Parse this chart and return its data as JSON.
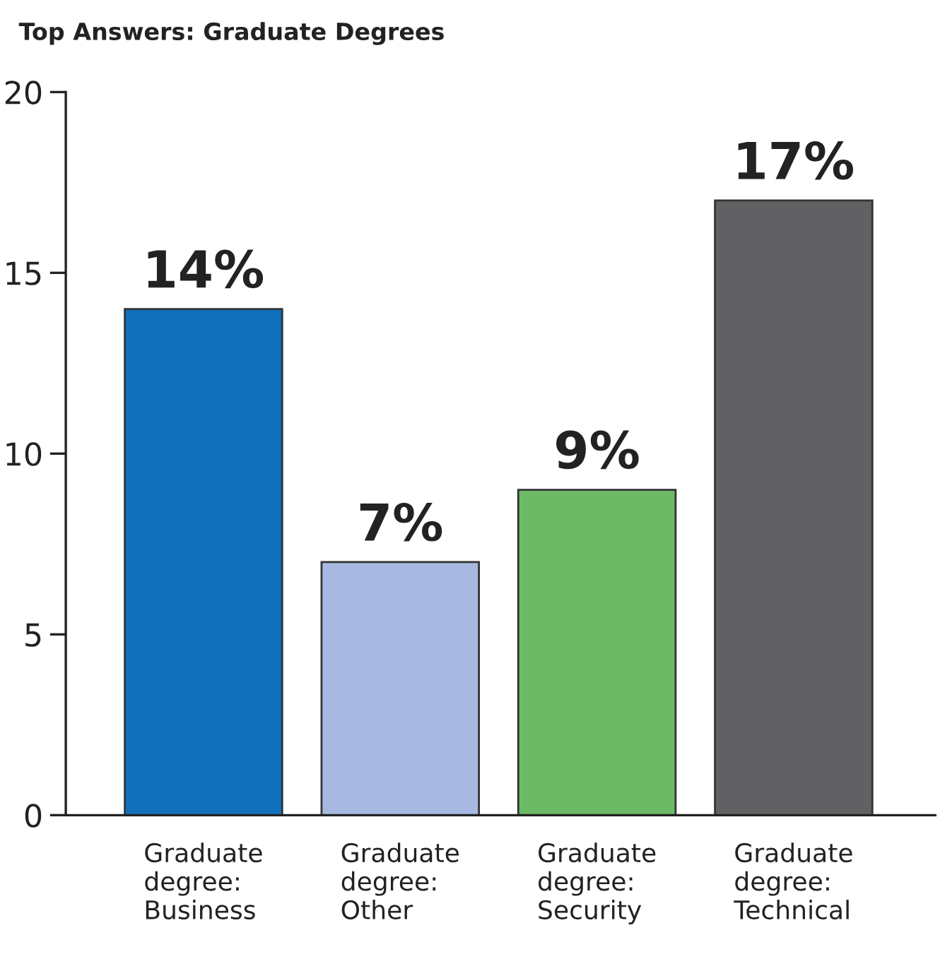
{
  "chart_data": {
    "type": "bar",
    "title": "Top Answers: Graduate Degrees",
    "categories": [
      "Graduate\ndegree:\nBusiness",
      "Graduate\ndegree:\nOther",
      "Graduate\ndegree:\nSecurity",
      "Graduate\ndegree:\nTechnical"
    ],
    "values": [
      14,
      7,
      9,
      17
    ],
    "colors": [
      "#1170bb",
      "#a7b9e0",
      "#6dba66",
      "#616163"
    ],
    "value_labels": [
      "14%",
      "7%",
      "9%",
      "17%"
    ],
    "ylim": [
      0,
      20
    ],
    "yticks": [
      0,
      5,
      10,
      15,
      20
    ],
    "grid": false
  }
}
